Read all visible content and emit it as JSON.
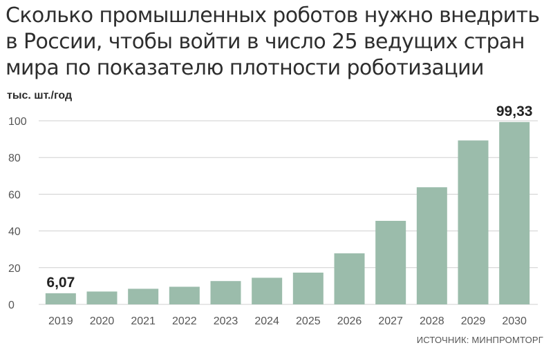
{
  "title_line1": "Сколько промышленных роботов нужно внедрить",
  "title_line2": "в России, чтобы войти в число 25 ведущих стран",
  "title_line3": "мира по показателю плотности роботизации",
  "unit": "тыс. шт./год",
  "source": "ИСТОЧНИК: МИНПРОМТОРГ",
  "chart_data": {
    "type": "bar",
    "title": "Сколько промышленных роботов нужно внедрить в России, чтобы войти в число 25 ведущих стран мира по показателю плотности роботизации",
    "ylabel": "тыс. шт./год",
    "xlabel": "",
    "categories": [
      "2019",
      "2020",
      "2021",
      "2022",
      "2023",
      "2024",
      "2025",
      "2026",
      "2027",
      "2028",
      "2029",
      "2030"
    ],
    "values": [
      6.07,
      7,
      8.5,
      9.6,
      12.7,
      14.5,
      17.3,
      27.8,
      45.5,
      63.8,
      89.3,
      99.33
    ],
    "data_labels": [
      {
        "category": "2019",
        "text": "6,07"
      },
      {
        "category": "2030",
        "text": "99,33"
      }
    ],
    "ylim": [
      0,
      100
    ],
    "yticks": [
      "0",
      "20",
      "40",
      "60",
      "80",
      "100"
    ],
    "grid": true,
    "bar_color": "#9bbcab",
    "grid_color": "#cfcfcf"
  }
}
